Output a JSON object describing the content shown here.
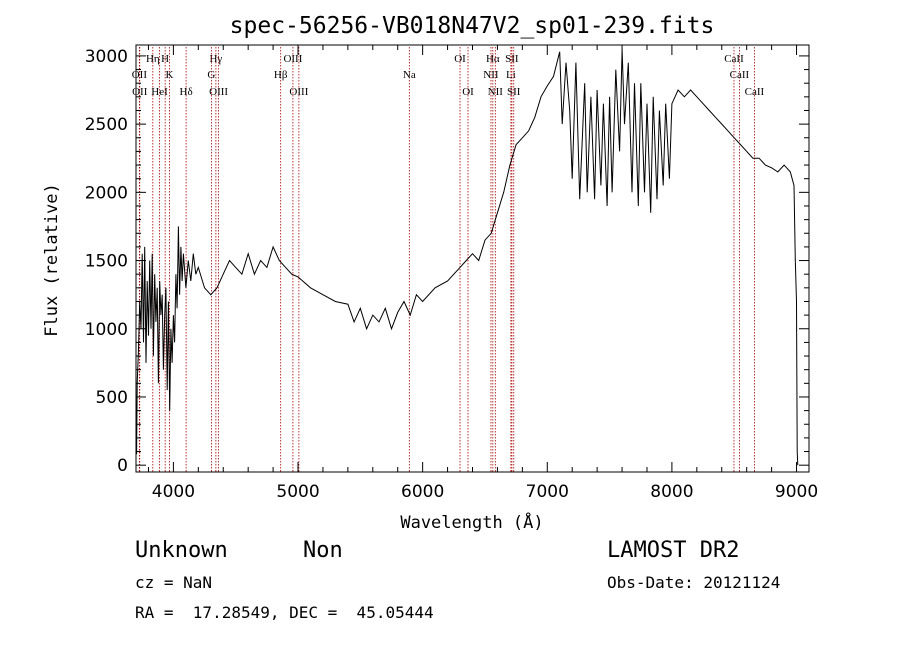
{
  "chart_data": {
    "type": "line",
    "title": "spec-56256-VB018N47V2_sp01-239.fits",
    "xlabel": "Wavelength (Å)",
    "ylabel": "Flux (relative)",
    "xlim": [
      3700,
      9100
    ],
    "ylim": [
      -50,
      3080
    ],
    "xticks": [
      4000,
      5000,
      6000,
      7000,
      8000,
      9000
    ],
    "yticks": [
      0,
      500,
      1000,
      1500,
      2000,
      2500,
      3000
    ],
    "grid": false,
    "line_color": "#000000",
    "marker_line_color": "#aa0000",
    "series": [
      {
        "points": [
          [
            3700,
            350
          ],
          [
            3705,
            80
          ],
          [
            3710,
            600
          ],
          [
            3720,
            850
          ],
          [
            3730,
            1200
          ],
          [
            3740,
            1000
          ],
          [
            3750,
            1550
          ],
          [
            3760,
            900
          ],
          [
            3770,
            1600
          ],
          [
            3780,
            750
          ],
          [
            3790,
            1350
          ],
          [
            3800,
            950
          ],
          [
            3810,
            1500
          ],
          [
            3820,
            1000
          ],
          [
            3830,
            1550
          ],
          [
            3840,
            800
          ],
          [
            3850,
            1400
          ],
          [
            3860,
            1050
          ],
          [
            3870,
            1300
          ],
          [
            3880,
            600
          ],
          [
            3890,
            1350
          ],
          [
            3900,
            1100
          ],
          [
            3910,
            1250
          ],
          [
            3920,
            700
          ],
          [
            3930,
            1100
          ],
          [
            3940,
            1300
          ],
          [
            3950,
            550
          ],
          [
            3960,
            1200
          ],
          [
            3970,
            400
          ],
          [
            3980,
            1000
          ],
          [
            3990,
            750
          ],
          [
            4000,
            1100
          ],
          [
            4010,
            900
          ],
          [
            4020,
            1400
          ],
          [
            4030,
            1150
          ],
          [
            4040,
            1750
          ],
          [
            4050,
            1250
          ],
          [
            4060,
            1600
          ],
          [
            4070,
            1350
          ],
          [
            4080,
            1550
          ],
          [
            4100,
            1300
          ],
          [
            4120,
            1500
          ],
          [
            4140,
            1350
          ],
          [
            4160,
            1550
          ],
          [
            4180,
            1400
          ],
          [
            4200,
            1450
          ],
          [
            4250,
            1300
          ],
          [
            4300,
            1250
          ],
          [
            4350,
            1300
          ],
          [
            4400,
            1400
          ],
          [
            4450,
            1500
          ],
          [
            4500,
            1450
          ],
          [
            4550,
            1400
          ],
          [
            4600,
            1550
          ],
          [
            4650,
            1400
          ],
          [
            4700,
            1500
          ],
          [
            4750,
            1450
          ],
          [
            4800,
            1600
          ],
          [
            4850,
            1500
          ],
          [
            4900,
            1450
          ],
          [
            4950,
            1400
          ],
          [
            5000,
            1380
          ],
          [
            5100,
            1300
          ],
          [
            5200,
            1250
          ],
          [
            5300,
            1200
          ],
          [
            5400,
            1180
          ],
          [
            5450,
            1050
          ],
          [
            5500,
            1150
          ],
          [
            5550,
            1000
          ],
          [
            5600,
            1100
          ],
          [
            5650,
            1050
          ],
          [
            5700,
            1150
          ],
          [
            5750,
            1000
          ],
          [
            5800,
            1120
          ],
          [
            5850,
            1200
          ],
          [
            5900,
            1100
          ],
          [
            5950,
            1250
          ],
          [
            6000,
            1200
          ],
          [
            6100,
            1300
          ],
          [
            6200,
            1350
          ],
          [
            6300,
            1450
          ],
          [
            6350,
            1500
          ],
          [
            6400,
            1550
          ],
          [
            6450,
            1500
          ],
          [
            6500,
            1650
          ],
          [
            6550,
            1700
          ],
          [
            6600,
            1850
          ],
          [
            6650,
            2000
          ],
          [
            6700,
            2200
          ],
          [
            6750,
            2350
          ],
          [
            6800,
            2400
          ],
          [
            6850,
            2450
          ],
          [
            6900,
            2550
          ],
          [
            6950,
            2700
          ],
          [
            7000,
            2780
          ],
          [
            7050,
            2850
          ],
          [
            7100,
            3030
          ],
          [
            7120,
            2500
          ],
          [
            7150,
            2950
          ],
          [
            7180,
            2600
          ],
          [
            7200,
            2100
          ],
          [
            7230,
            2950
          ],
          [
            7260,
            1950
          ],
          [
            7300,
            2800
          ],
          [
            7320,
            2000
          ],
          [
            7350,
            2700
          ],
          [
            7380,
            1950
          ],
          [
            7400,
            2750
          ],
          [
            7430,
            2050
          ],
          [
            7450,
            2650
          ],
          [
            7480,
            1900
          ],
          [
            7500,
            2700
          ],
          [
            7520,
            2000
          ],
          [
            7550,
            2900
          ],
          [
            7580,
            2300
          ],
          [
            7600,
            3050
          ],
          [
            7620,
            2500
          ],
          [
            7650,
            2950
          ],
          [
            7680,
            2000
          ],
          [
            7700,
            2800
          ],
          [
            7730,
            1900
          ],
          [
            7750,
            2800
          ],
          [
            7780,
            2000
          ],
          [
            7800,
            2650
          ],
          [
            7830,
            1850
          ],
          [
            7850,
            2700
          ],
          [
            7880,
            1950
          ],
          [
            7900,
            2600
          ],
          [
            7930,
            2050
          ],
          [
            7950,
            2650
          ],
          [
            7980,
            2100
          ],
          [
            8000,
            2650
          ],
          [
            8050,
            2750
          ],
          [
            8100,
            2700
          ],
          [
            8150,
            2750
          ],
          [
            8200,
            2700
          ],
          [
            8250,
            2650
          ],
          [
            8300,
            2600
          ],
          [
            8350,
            2550
          ],
          [
            8400,
            2500
          ],
          [
            8450,
            2450
          ],
          [
            8500,
            2400
          ],
          [
            8550,
            2350
          ],
          [
            8600,
            2300
          ],
          [
            8650,
            2250
          ],
          [
            8700,
            2250
          ],
          [
            8750,
            2200
          ],
          [
            8800,
            2180
          ],
          [
            8850,
            2150
          ],
          [
            8900,
            2200
          ],
          [
            8950,
            2150
          ],
          [
            8980,
            2050
          ],
          [
            8990,
            1500
          ],
          [
            9000,
            1200
          ],
          [
            9005,
            100
          ],
          [
            9010,
            0
          ]
        ]
      }
    ],
    "line_markers": [
      {
        "label": "OII",
        "x": 3727,
        "row": 2
      },
      {
        "label": "OII",
        "x": 3730,
        "row": 3
      },
      {
        "label": "Hη",
        "x": 3835,
        "row": 1
      },
      {
        "label": "HeI",
        "x": 3889,
        "row": 3
      },
      {
        "label": "H",
        "x": 3934,
        "row": 1
      },
      {
        "label": "K",
        "x": 3969,
        "row": 2
      },
      {
        "label": "Hδ",
        "x": 4102,
        "row": 3
      },
      {
        "label": "Hγ",
        "x": 4341,
        "row": 1
      },
      {
        "label": "G",
        "x": 4305,
        "row": 2
      },
      {
        "label": "OIII",
        "x": 4363,
        "row": 3
      },
      {
        "label": "Hβ",
        "x": 4861,
        "row": 2
      },
      {
        "label": "OIII",
        "x": 4959,
        "row": 1
      },
      {
        "label": "OIII",
        "x": 5007,
        "row": 3
      },
      {
        "label": "Na",
        "x": 5893,
        "row": 2
      },
      {
        "label": "OI",
        "x": 6300,
        "row": 1
      },
      {
        "label": "OI",
        "x": 6364,
        "row": 3
      },
      {
        "label": "Hα",
        "x": 6563,
        "row": 1
      },
      {
        "label": "NII",
        "x": 6548,
        "row": 2
      },
      {
        "label": "NII",
        "x": 6583,
        "row": 3
      },
      {
        "label": "SII",
        "x": 6716,
        "row": 1
      },
      {
        "label": "Li",
        "x": 6708,
        "row": 2
      },
      {
        "label": "SII",
        "x": 6731,
        "row": 3
      },
      {
        "label": "CaII",
        "x": 8498,
        "row": 1
      },
      {
        "label": "CaII",
        "x": 8542,
        "row": 2
      },
      {
        "label": "CaII",
        "x": 8662,
        "row": 3
      }
    ]
  },
  "info": {
    "class": "Unknown",
    "subclass": "Non",
    "survey": "LAMOST DR2",
    "cz": "cz = NaN",
    "obs_date": "Obs-Date: 20121124",
    "coords": "RA =  17.28549, DEC =  45.05444"
  }
}
